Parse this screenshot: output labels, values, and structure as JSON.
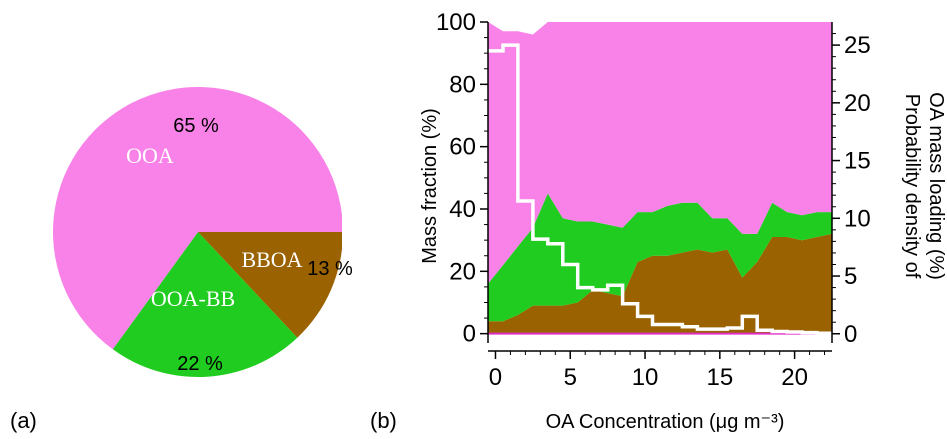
{
  "chart_data": [
    {
      "type": "pie",
      "panel_label": "(a)",
      "slices": [
        {
          "name": "OOA",
          "percent": 65,
          "percent_label": "65 %",
          "color": "#f882e8"
        },
        {
          "name": "OOA-BB",
          "percent": 22,
          "percent_label": "22 %",
          "color": "#1fcc1f"
        },
        {
          "name": "BBOA",
          "percent": 13,
          "percent_label": "13 %",
          "color": "#9a6200"
        }
      ]
    },
    {
      "type": "area",
      "panel_label": "(b)",
      "stacked": true,
      "xlabel": "OA Concentration (μg m⁻³)",
      "ylabel": "Mass fraction (%)",
      "y2label_lines": [
        "Probability density of",
        "OA mass loading (%)"
      ],
      "xlim": [
        -0.5,
        22.5
      ],
      "ylim": [
        -3,
        100
      ],
      "y2lim": [
        -0.8,
        27
      ],
      "xticks": [
        0,
        5,
        10,
        15,
        20
      ],
      "yticks": [
        0,
        20,
        40,
        60,
        80,
        100
      ],
      "y2ticks": [
        0,
        5,
        10,
        15,
        20,
        25
      ],
      "x": [
        -0.5,
        0.5,
        1.5,
        2.5,
        3.5,
        4.5,
        5.5,
        6.5,
        7.5,
        8.5,
        9.5,
        10.5,
        11.5,
        12.5,
        13.5,
        14.5,
        15.5,
        16.5,
        17.5,
        18.5,
        19.5,
        20.5,
        21.5,
        22.5
      ],
      "series": [
        {
          "name": "OOA",
          "color": "#f882e8",
          "values": [
            84,
            75,
            69,
            62,
            55,
            63,
            64,
            64,
            65,
            66,
            61,
            61,
            59,
            58,
            58,
            63,
            63,
            68,
            68,
            58,
            61,
            62,
            61,
            61
          ]
        },
        {
          "name": "OOA-BB",
          "color": "#1fcc1f",
          "values": [
            12,
            18,
            22,
            25,
            36,
            28,
            26,
            22,
            22,
            22,
            16,
            14,
            16,
            16,
            15,
            11,
            10,
            14,
            9,
            11,
            8,
            8,
            8,
            7
          ]
        },
        {
          "name": "BBOA",
          "color": "#9a6200",
          "values": [
            4,
            4,
            6,
            9,
            9,
            9,
            10,
            14,
            13,
            12,
            23,
            25,
            25,
            26,
            27,
            26,
            27,
            18,
            23,
            31,
            31,
            30,
            31,
            32
          ]
        }
      ],
      "probability_density": {
        "name": "Probability density of OA mass loading",
        "color": "#ffffff",
        "x": [
          0,
          1,
          2,
          3,
          4,
          5,
          6,
          7,
          8,
          9,
          10,
          11,
          12,
          13,
          14,
          15,
          16,
          17,
          18,
          19,
          20,
          21,
          22
        ],
        "values": [
          24.5,
          25,
          11.5,
          8.2,
          7.8,
          6,
          4,
          3.8,
          4.2,
          2.6,
          1.5,
          0.8,
          0.8,
          0.6,
          0.4,
          0.4,
          0.5,
          1.5,
          0.3,
          0.2,
          0.15,
          0.1,
          0.05
        ]
      }
    }
  ]
}
